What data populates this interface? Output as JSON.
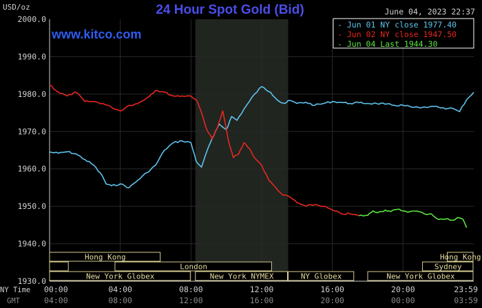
{
  "chart_data": {
    "type": "line",
    "title": "24 Hour Spot Gold (Bid)",
    "watermark": "www.kitco.com",
    "y_unit_label": "USD/oz",
    "timestamp": "June 04, 2023 22:37",
    "ylim": [
      1930,
      2000
    ],
    "yticks": [
      1930,
      1940,
      1950,
      1960,
      1970,
      1980,
      1990,
      2000
    ],
    "ytick_labels": [
      "1930.0",
      "1940.0",
      "1950.0",
      "1960.0",
      "1970.0",
      "1980.0",
      "1990.0",
      "2000.0"
    ],
    "xlim": [
      0,
      24
    ],
    "xticks": [
      0,
      4,
      8,
      12,
      16,
      20,
      23.983
    ],
    "ny_row_label": "NY Time",
    "gmt_row_label": "GMT",
    "ny_tick_labels": [
      "00:00",
      "04:00",
      "08:00",
      "12:00",
      "16:00",
      "20:00",
      "23:59"
    ],
    "gmt_tick_labels": [
      "04:00",
      "08:00",
      "12:00",
      "16:00",
      "20:00",
      "00:00",
      "03:59"
    ],
    "shaded_region_x": [
      8.25,
      13.5
    ],
    "legend": [
      {
        "label": "Jun 01 NY close 1977.40",
        "color": "#5fc4ee"
      },
      {
        "label": "Jun 02 NY close 1947.50",
        "color": "#e8281e"
      },
      {
        "label": "Jun 04 Last 1944.30",
        "color": "#5ee640"
      }
    ],
    "series": [
      {
        "name": "Jun 01",
        "color": "#5fc4ee",
        "x": [
          0,
          0.5,
          1,
          1.5,
          2,
          2.5,
          3,
          3.2,
          3.5,
          4,
          4.5,
          5,
          5.5,
          6,
          6.5,
          7,
          7.5,
          8,
          8.3,
          8.6,
          9,
          9.3,
          9.6,
          10,
          10.3,
          10.6,
          11,
          11.3,
          11.6,
          12,
          12.5,
          13,
          13.3,
          13.6,
          14,
          14.5,
          15,
          15.5,
          16,
          16.5,
          17,
          17.5,
          18,
          18.5,
          19,
          19.5,
          20,
          20.5,
          21,
          21.5,
          22,
          22.4,
          22.8,
          23.2,
          23.6,
          24
        ],
        "y": [
          1964.5,
          1964.2,
          1964.6,
          1964,
          1962.5,
          1961,
          1958,
          1956,
          1955.5,
          1956,
          1955,
          1957,
          1959,
          1961,
          1965,
          1967,
          1967.5,
          1967,
          1962,
          1960.5,
          1966,
          1969,
          1972,
          1970.5,
          1974,
          1973,
          1976,
          1978,
          1980,
          1982,
          1980.5,
          1978,
          1977.5,
          1978.3,
          1977.5,
          1977.8,
          1977,
          1977.5,
          1978,
          1977.8,
          1977.5,
          1977.7,
          1977.5,
          1977.5,
          1977.3,
          1977,
          1977,
          1976.5,
          1976.3,
          1976.6,
          1976.5,
          1976,
          1976.2,
          1975.3,
          1978.5,
          1980.5
        ]
      },
      {
        "name": "Jun 02",
        "color": "#e8281e",
        "x": [
          0,
          0.5,
          1,
          1.5,
          2,
          2.5,
          3,
          3.5,
          4,
          4.5,
          5,
          5.5,
          6,
          6.5,
          7,
          7.5,
          8,
          8.3,
          8.6,
          8.9,
          9.2,
          9.5,
          9.8,
          10.1,
          10.4,
          10.7,
          11,
          11.3,
          11.6,
          12,
          12.4,
          12.8,
          13.2,
          13.6,
          14,
          14.5,
          15,
          15.5,
          16,
          16.5,
          17,
          17.5
        ],
        "y": [
          1982.5,
          1980.5,
          1979.5,
          1980.5,
          1978,
          1978,
          1977.5,
          1976.5,
          1975.5,
          1977,
          1977.5,
          1979,
          1981,
          1980.5,
          1979.5,
          1979.5,
          1979.5,
          1978.5,
          1975,
          1970.5,
          1968,
          1971,
          1975.5,
          1968,
          1963,
          1964,
          1967,
          1965.5,
          1963,
          1961,
          1957,
          1955,
          1953,
          1952.5,
          1951,
          1950,
          1950.5,
          1950,
          1949,
          1948,
          1948,
          1947.5
        ]
      },
      {
        "name": "Jun 04",
        "color": "#5ee640",
        "x": [
          17.5,
          18,
          18.3,
          18.6,
          19,
          19.3,
          19.7,
          20,
          20.4,
          20.8,
          21.2,
          21.6,
          22,
          22.4,
          22.8,
          23.1,
          23.4,
          23.6
        ],
        "y": [
          1947.5,
          1947.6,
          1948.8,
          1948.4,
          1949,
          1948.6,
          1949.2,
          1948.8,
          1948.6,
          1948.7,
          1948,
          1948,
          1946.5,
          1946.6,
          1946.3,
          1947,
          1946.5,
          1944.3
        ]
      }
    ],
    "sessions": [
      {
        "label": "Hong Kong",
        "row": 0,
        "start": 0,
        "end": 6.3
      },
      {
        "label": "Hong Kong",
        "row": 0,
        "start": 22.5,
        "end": 24
      },
      {
        "label": "",
        "row": 1,
        "start": 0,
        "end": 1.1
      },
      {
        "label": "London",
        "row": 1,
        "start": 3.7,
        "end": 12.6
      },
      {
        "label": "Sydney",
        "row": 1,
        "start": 21.1,
        "end": 24
      },
      {
        "label": "New York Globex",
        "row": 2,
        "start": 0,
        "end": 8
      },
      {
        "label": "New York NYMEX",
        "row": 2,
        "start": 8.25,
        "end": 13.5
      },
      {
        "label": "NY Globex",
        "row": 2,
        "start": 13.5,
        "end": 17.25
      },
      {
        "label": "New York Globex",
        "row": 2,
        "start": 18,
        "end": 24
      }
    ]
  }
}
